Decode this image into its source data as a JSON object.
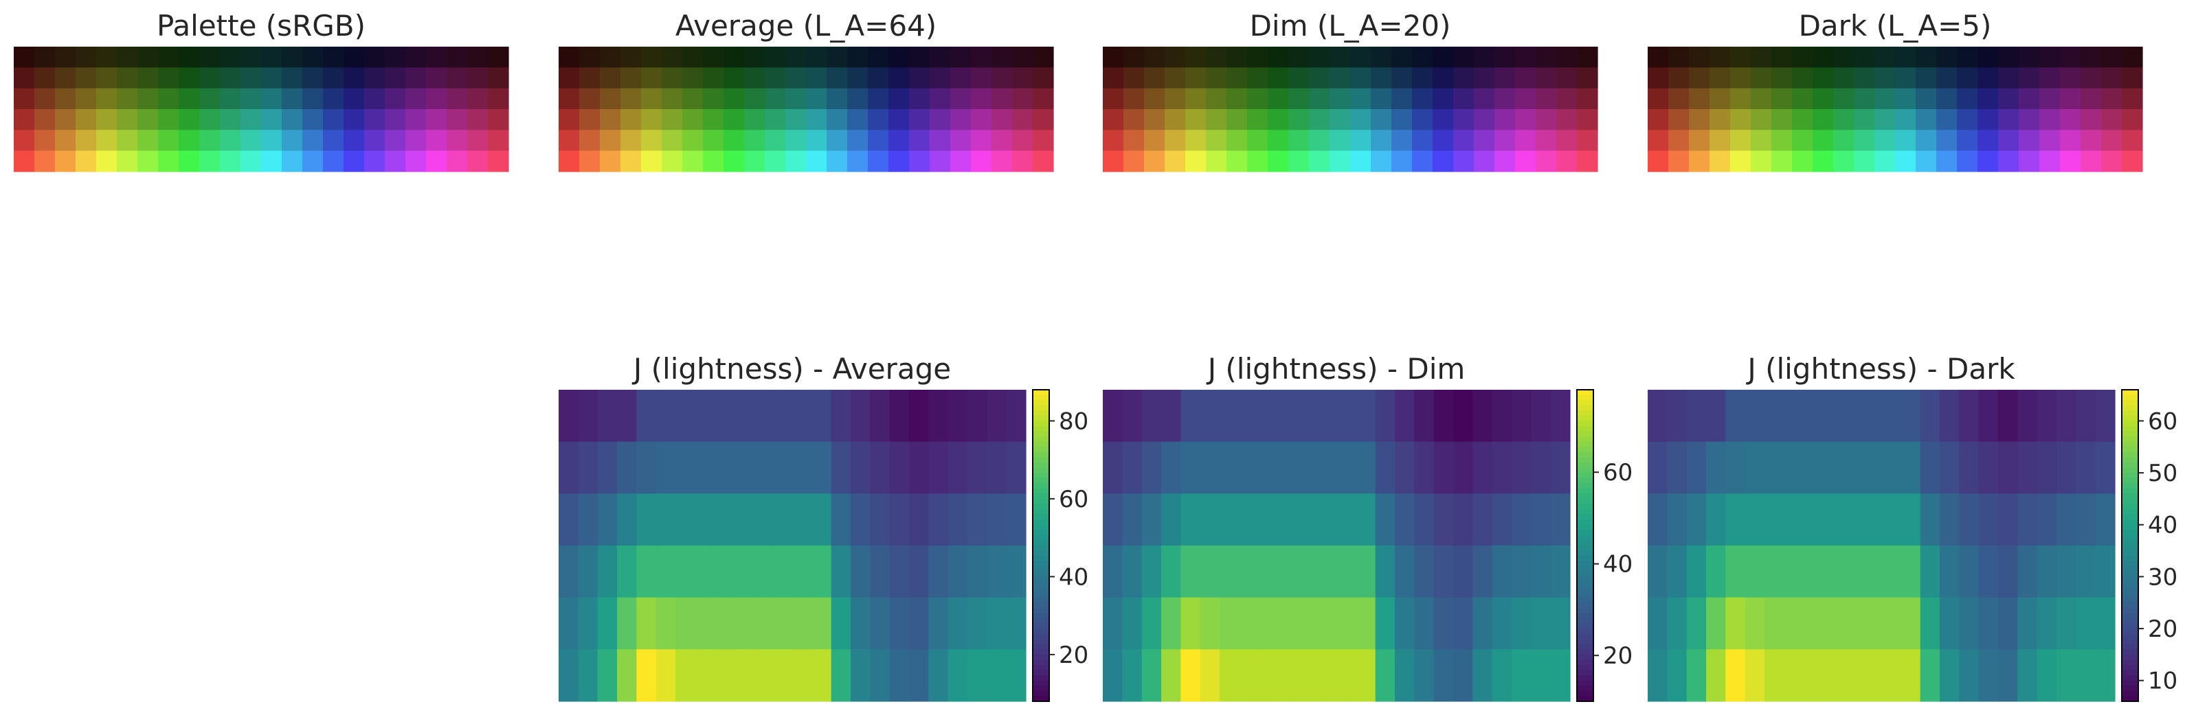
{
  "chart_data": [
    {
      "type": "heatmap",
      "title": "Palette (sRGB)",
      "grid": false,
      "rows": 6,
      "cols": 24,
      "encoding": "sRGB swatch grid: hue sweeps left to right (red→yellow→green→cyan→blue→magenta→red), brightness increases top to bottom"
    },
    {
      "type": "heatmap",
      "title": "Average (L_A=64)",
      "grid": false,
      "rows": 6,
      "cols": 24
    },
    {
      "type": "heatmap",
      "title": "Dim (L_A=20)",
      "grid": false,
      "rows": 6,
      "cols": 24
    },
    {
      "type": "heatmap",
      "title": "Dark (L_A=5)",
      "grid": false,
      "rows": 6,
      "cols": 24
    },
    {
      "type": "heatmap",
      "title": "J (lightness) - Average",
      "colormap": "viridis",
      "colorbar": {
        "ticks": [
          20,
          40,
          60,
          80
        ],
        "range": [
          8,
          88
        ]
      },
      "values": [
        [
          15,
          16,
          18,
          18,
          25,
          25,
          25,
          25,
          25,
          25,
          25,
          25,
          25,
          25,
          21,
          18,
          15,
          12,
          10,
          12,
          13,
          14,
          15,
          16
        ],
        [
          22,
          24,
          27,
          31,
          33,
          34,
          34,
          34,
          34,
          34,
          34,
          34,
          34,
          34,
          26,
          23,
          20,
          18,
          16,
          17,
          19,
          20,
          21,
          22
        ],
        [
          29,
          32,
          36,
          43,
          48,
          48,
          48,
          48,
          48,
          48,
          48,
          48,
          48,
          48,
          35,
          29,
          26,
          24,
          22,
          25,
          27,
          28,
          29,
          30
        ],
        [
          36,
          40,
          47,
          56,
          62,
          62,
          62,
          62,
          62,
          62,
          62,
          62,
          62,
          62,
          45,
          35,
          31,
          28,
          27,
          32,
          35,
          37,
          38,
          39
        ],
        [
          40,
          45,
          53,
          67,
          75,
          73,
          72,
          72,
          72,
          72,
          72,
          72,
          72,
          72,
          52,
          40,
          36,
          32,
          31,
          38,
          43,
          45,
          46,
          46
        ],
        [
          43,
          48,
          58,
          74,
          88,
          85,
          80,
          80,
          80,
          80,
          80,
          80,
          80,
          80,
          58,
          44,
          40,
          35,
          34,
          44,
          50,
          52,
          52,
          52
        ]
      ]
    },
    {
      "type": "heatmap",
      "title": "J (lightness) - Dim",
      "colormap": "viridis",
      "colorbar": {
        "ticks": [
          20,
          40,
          60
        ],
        "range": [
          10,
          78
        ]
      },
      "values": [
        [
          16,
          17,
          19,
          19,
          25,
          25,
          25,
          25,
          25,
          25,
          25,
          25,
          25,
          25,
          22,
          18,
          15,
          12,
          11,
          13,
          14,
          15,
          16,
          17
        ],
        [
          22,
          24,
          27,
          31,
          33,
          33,
          33,
          33,
          33,
          33,
          33,
          33,
          33,
          33,
          26,
          23,
          20,
          17,
          16,
          18,
          19,
          20,
          21,
          22
        ],
        [
          28,
          31,
          35,
          41,
          45,
          45,
          45,
          45,
          45,
          45,
          45,
          45,
          45,
          45,
          34,
          29,
          26,
          23,
          22,
          24,
          26,
          28,
          29,
          30
        ],
        [
          34,
          38,
          44,
          52,
          57,
          57,
          57,
          57,
          57,
          57,
          57,
          57,
          57,
          57,
          42,
          34,
          30,
          27,
          26,
          30,
          34,
          35,
          36,
          37
        ],
        [
          38,
          42,
          50,
          61,
          68,
          66,
          65,
          65,
          65,
          65,
          65,
          65,
          65,
          65,
          48,
          38,
          34,
          30,
          29,
          36,
          40,
          42,
          43,
          43
        ],
        [
          40,
          45,
          54,
          68,
          78,
          75,
          71,
          71,
          71,
          71,
          71,
          71,
          71,
          71,
          54,
          42,
          38,
          33,
          32,
          41,
          46,
          48,
          48,
          48
        ]
      ]
    },
    {
      "type": "heatmap",
      "title": "J (lightness) - Dark",
      "colormap": "viridis",
      "colorbar": {
        "ticks": [
          10,
          20,
          30,
          40,
          50,
          60
        ],
        "range": [
          6,
          66
        ]
      },
      "values": [
        [
          15,
          16,
          17,
          17,
          22,
          22,
          22,
          22,
          22,
          22,
          22,
          22,
          22,
          22,
          19,
          16,
          13,
          11,
          9,
          11,
          12,
          13,
          14,
          15
        ],
        [
          19,
          21,
          23,
          27,
          28,
          29,
          29,
          29,
          29,
          29,
          29,
          29,
          29,
          29,
          22,
          20,
          17,
          15,
          14,
          15,
          16,
          17,
          18,
          19
        ],
        [
          24,
          27,
          30,
          35,
          38,
          38,
          38,
          38,
          38,
          38,
          38,
          38,
          38,
          38,
          29,
          25,
          22,
          20,
          19,
          21,
          22,
          24,
          25,
          26
        ],
        [
          29,
          32,
          37,
          44,
          48,
          48,
          48,
          48,
          48,
          48,
          48,
          48,
          48,
          48,
          36,
          29,
          26,
          23,
          22,
          26,
          29,
          30,
          31,
          32
        ],
        [
          32,
          36,
          42,
          52,
          58,
          56,
          55,
          55,
          55,
          55,
          55,
          55,
          55,
          55,
          41,
          32,
          29,
          26,
          25,
          31,
          34,
          36,
          37,
          37
        ],
        [
          34,
          38,
          46,
          58,
          66,
          63,
          60,
          60,
          60,
          60,
          60,
          60,
          60,
          60,
          46,
          36,
          32,
          28,
          27,
          35,
          39,
          41,
          41,
          41
        ]
      ]
    }
  ]
}
